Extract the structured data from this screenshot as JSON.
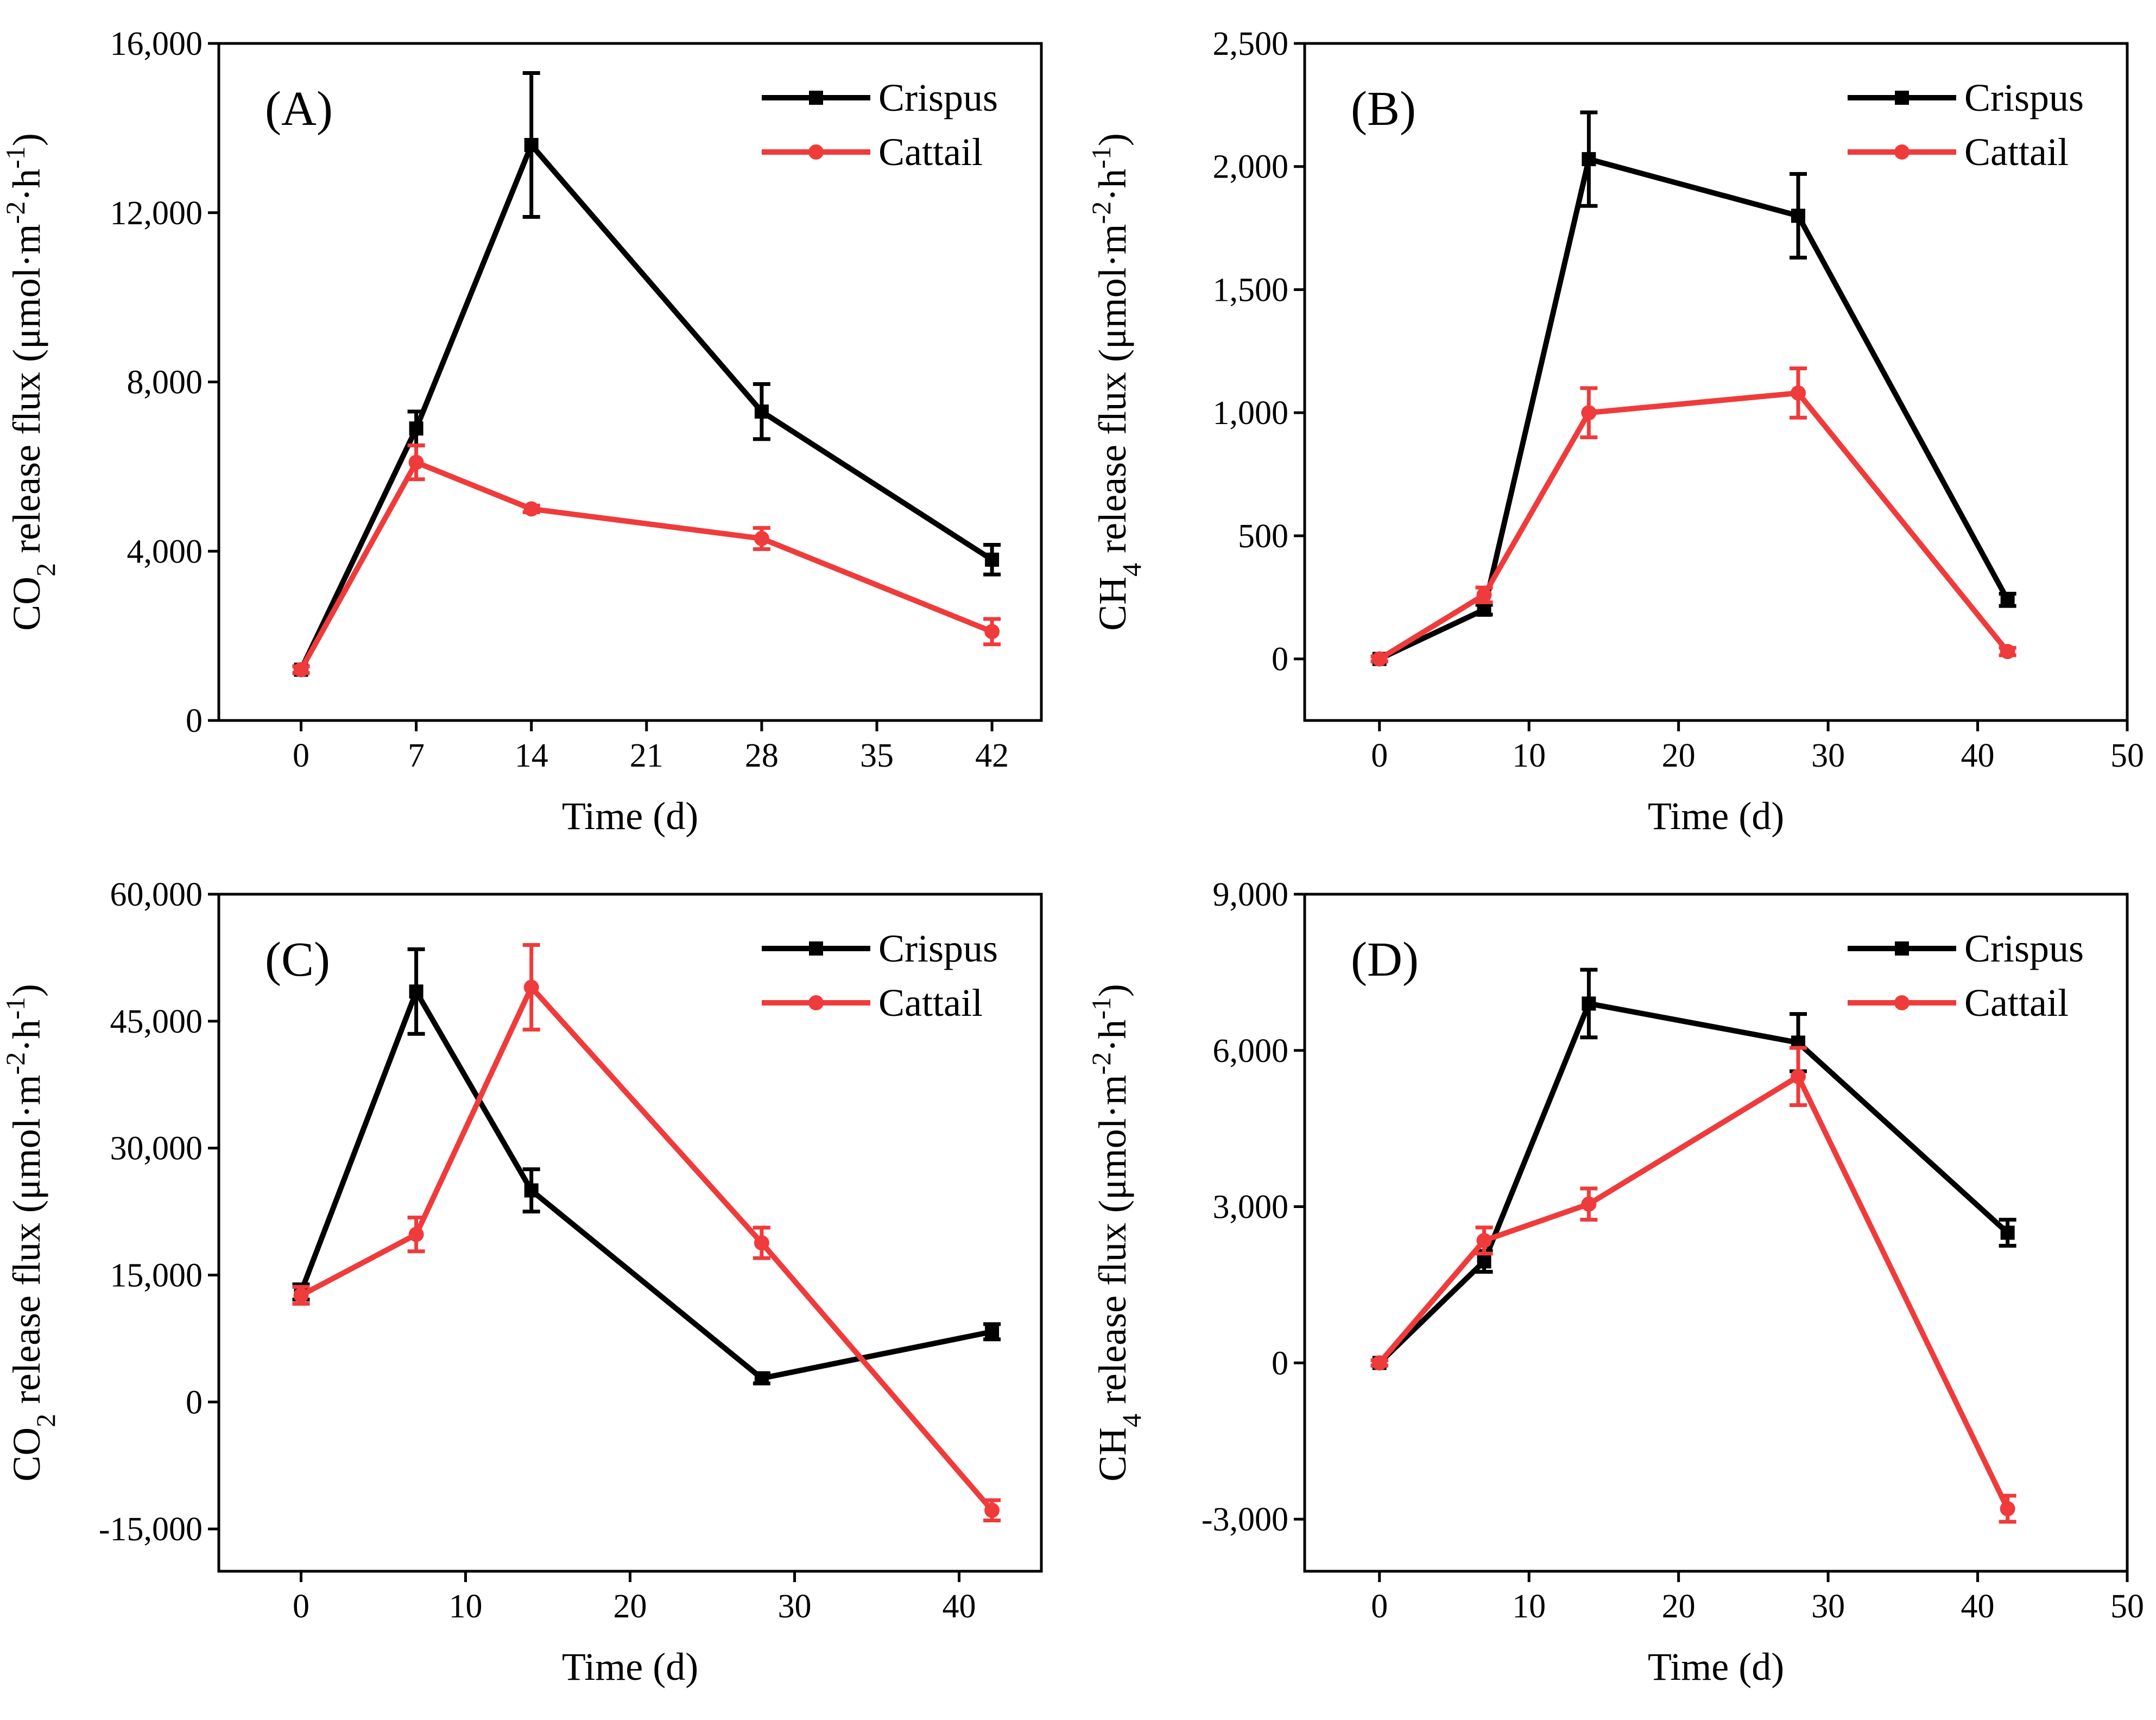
{
  "chart_data": [
    {
      "type": "line",
      "panel": "(A)",
      "xlabel": "Time (d)",
      "ylabel": {
        "pre": "CO",
        "sub": "2",
        "mid": " release flux (μmol·m",
        "sup1": "-2",
        "dot": "·h",
        "sup2": "-1",
        "post": ")"
      },
      "xlim": [
        -5,
        45
      ],
      "ylim": [
        0,
        16000
      ],
      "xticks": [
        0,
        7,
        14,
        21,
        28,
        35,
        42
      ],
      "xticklabels": [
        "0",
        "7",
        "14",
        "21",
        "28",
        "35",
        "42"
      ],
      "yticks": [
        0,
        4000,
        8000,
        12000,
        16000
      ],
      "yticklabels": [
        "0",
        "4,000",
        "8,000",
        "12,000",
        "16,000"
      ],
      "legend_position": "top-right",
      "series": [
        {
          "name": "Crispus",
          "color": "#000000",
          "marker": "square",
          "x": [
            0,
            7,
            14,
            28,
            42
          ],
          "y": [
            1200,
            6900,
            13600,
            7300,
            3800
          ],
          "err": [
            80,
            400,
            1700,
            650,
            350
          ]
        },
        {
          "name": "Cattail",
          "color": "#ef3b3b",
          "marker": "circle",
          "x": [
            0,
            7,
            14,
            28,
            42
          ],
          "y": [
            1200,
            6100,
            5000,
            4300,
            2100
          ],
          "err": [
            80,
            400,
            80,
            250,
            300
          ]
        }
      ]
    },
    {
      "type": "line",
      "panel": "(B)",
      "xlabel": "Time (d)",
      "ylabel": {
        "pre": "CH",
        "sub": "4",
        "mid": " release flux (μmol·m",
        "sup1": "-2",
        "dot": "·h",
        "sup2": "-1",
        "post": ")"
      },
      "xlim": [
        -5,
        50
      ],
      "ylim": [
        -250,
        2500
      ],
      "xticks": [
        0,
        10,
        20,
        30,
        40,
        50
      ],
      "xticklabels": [
        "0",
        "10",
        "20",
        "30",
        "40",
        "50"
      ],
      "yticks": [
        0,
        500,
        1000,
        1500,
        2000,
        2500
      ],
      "yticklabels": [
        "0",
        "500",
        "1,000",
        "1,500",
        "2,000",
        "2,500"
      ],
      "legend_position": "top-right",
      "series": [
        {
          "name": "Crispus",
          "color": "#000000",
          "marker": "square",
          "x": [
            0,
            7,
            14,
            28,
            42
          ],
          "y": [
            0,
            200,
            2030,
            1800,
            240
          ],
          "err": [
            10,
            20,
            190,
            170,
            25
          ]
        },
        {
          "name": "Cattail",
          "color": "#ef3b3b",
          "marker": "circle",
          "x": [
            0,
            7,
            14,
            28,
            42
          ],
          "y": [
            0,
            260,
            1000,
            1080,
            30
          ],
          "err": [
            10,
            30,
            100,
            100,
            15
          ]
        }
      ]
    },
    {
      "type": "line",
      "panel": "(C)",
      "xlabel": "Time (d)",
      "ylabel": {
        "pre": "CO",
        "sub": "2",
        "mid": " release flux (μmol·m",
        "sup1": "-2",
        "dot": "·h",
        "sup2": "-1",
        "post": ")"
      },
      "xlim": [
        -5,
        45
      ],
      "ylim": [
        -20000,
        60000
      ],
      "xticks": [
        0,
        10,
        20,
        30,
        40
      ],
      "xticklabels": [
        "0",
        "10",
        "20",
        "30",
        "40"
      ],
      "yticks": [
        -15000,
        0,
        15000,
        30000,
        45000,
        60000
      ],
      "yticklabels": [
        "-15,000",
        "0",
        "15,000",
        "30,000",
        "45,000",
        "60,000"
      ],
      "legend_position": "top-right",
      "series": [
        {
          "name": "Crispus",
          "color": "#000000",
          "marker": "square",
          "x": [
            0,
            7,
            14,
            28,
            42
          ],
          "y": [
            13000,
            48500,
            25000,
            2800,
            8300
          ],
          "err": [
            900,
            5000,
            2500,
            600,
            900
          ]
        },
        {
          "name": "Cattail",
          "color": "#ef3b3b",
          "marker": "circle",
          "x": [
            0,
            7,
            14,
            28,
            42
          ],
          "y": [
            12600,
            19800,
            49000,
            18800,
            -12800
          ],
          "err": [
            1000,
            2000,
            5000,
            1800,
            1200
          ]
        }
      ]
    },
    {
      "type": "line",
      "panel": "(D)",
      "xlabel": "Time (d)",
      "ylabel": {
        "pre": "CH",
        "sub": "4",
        "mid": " release flux (μmol·m",
        "sup1": "-2",
        "dot": "·h",
        "sup2": "-1",
        "post": ")"
      },
      "xlim": [
        -5,
        50
      ],
      "ylim": [
        -4000,
        9000
      ],
      "xticks": [
        0,
        10,
        20,
        30,
        40,
        50
      ],
      "xticklabels": [
        "0",
        "10",
        "20",
        "30",
        "40",
        "50"
      ],
      "yticks": [
        -3000,
        0,
        3000,
        6000,
        9000
      ],
      "yticklabels": [
        "-3,000",
        "0",
        "3,000",
        "6,000",
        "9,000"
      ],
      "legend_position": "top-right",
      "series": [
        {
          "name": "Crispus",
          "color": "#000000",
          "marker": "square",
          "x": [
            0,
            7,
            14,
            28,
            42
          ],
          "y": [
            0,
            1950,
            6900,
            6150,
            2500
          ],
          "err": [
            50,
            200,
            650,
            550,
            250
          ]
        },
        {
          "name": "Cattail",
          "color": "#ef3b3b",
          "marker": "circle",
          "x": [
            0,
            7,
            14,
            28,
            42
          ],
          "y": [
            0,
            2350,
            3050,
            5500,
            -2800
          ],
          "err": [
            50,
            250,
            300,
            550,
            250
          ]
        }
      ]
    }
  ]
}
